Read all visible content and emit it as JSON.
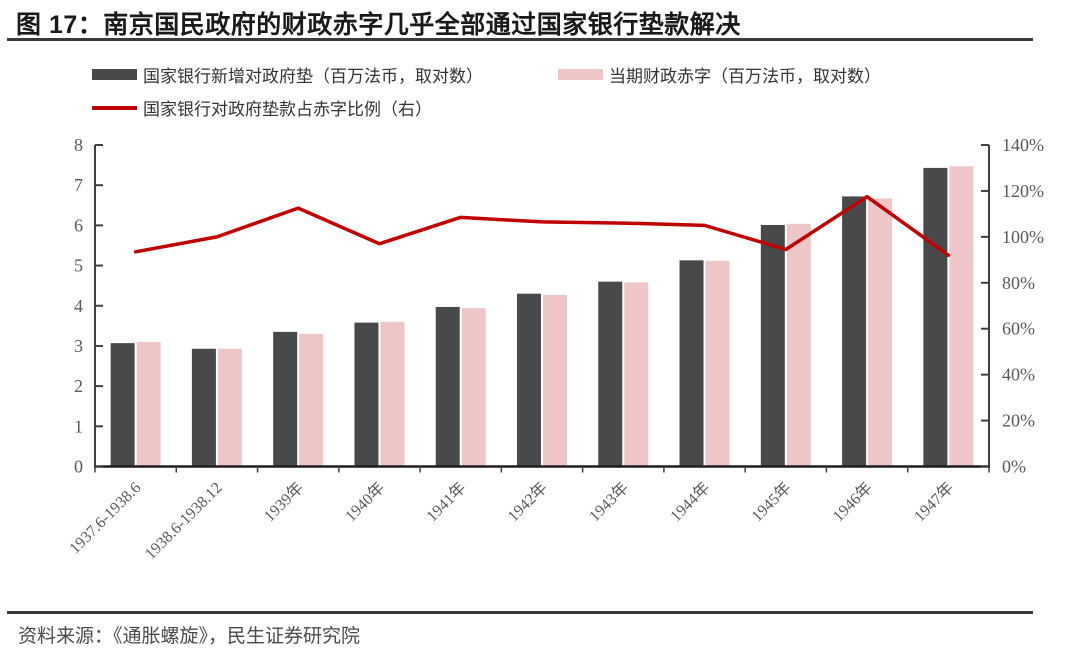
{
  "header": {
    "title": "图 17：南京国民政府的财政赤字几乎全部通过国家银行垫款解决"
  },
  "legend": {
    "items": [
      {
        "label": "国家银行新增对政府垫（百万法币，取对数）",
        "swatch": "bar",
        "color": "#48494b"
      },
      {
        "label": "当期财政赤字（百万法币，取对数）",
        "swatch": "bar",
        "color": "#eec6c7"
      },
      {
        "label": "国家银行对政府垫款占赤字比例（右）",
        "swatch": "line",
        "color": "#c00000"
      }
    ]
  },
  "chart_data": {
    "type": "bar",
    "subtype": "grouped bars with overlay line on secondary axis",
    "categories": [
      "1937.6-1938.6",
      "1938.6-1938.12",
      "1939年",
      "1940年",
      "1941年",
      "1942年",
      "1943年",
      "1944年",
      "1945年",
      "1946年",
      "1947年"
    ],
    "series": [
      {
        "name": "国家银行新增对政府垫（百万法币，取对数）",
        "type": "bar",
        "axis": "left",
        "color": "#48494b",
        "values": [
          3.07,
          2.93,
          3.35,
          3.58,
          3.97,
          4.3,
          4.6,
          5.13,
          6.01,
          6.72,
          7.43
        ]
      },
      {
        "name": "当期财政赤字（百万法币，取对数）",
        "type": "bar",
        "axis": "left",
        "color": "#eec6c7",
        "values": [
          3.1,
          2.93,
          3.3,
          3.6,
          3.94,
          4.27,
          4.58,
          5.12,
          6.04,
          6.67,
          7.47
        ]
      },
      {
        "name": "国家银行对政府垫款占赤字比例（右）",
        "type": "line",
        "axis": "right",
        "color": "#c00000",
        "values_percent": [
          93.5,
          100,
          112.5,
          97,
          108.5,
          106.5,
          106,
          105,
          94.5,
          117.5,
          92
        ]
      }
    ],
    "left_axis": {
      "min": 0,
      "max": 8,
      "tick_labels": [
        "0",
        "1",
        "2",
        "3",
        "4",
        "5",
        "6",
        "7",
        "8"
      ]
    },
    "right_axis": {
      "min": 0,
      "max": 140,
      "tick_labels": [
        "0%",
        "20%",
        "40%",
        "60%",
        "80%",
        "100%",
        "120%",
        "140%"
      ]
    },
    "grid": false,
    "legend_position": "top-left",
    "x_label_rotation_deg": -45
  },
  "footer": {
    "source": "资料来源：《通胀螺旋》，民生证券研究院"
  }
}
